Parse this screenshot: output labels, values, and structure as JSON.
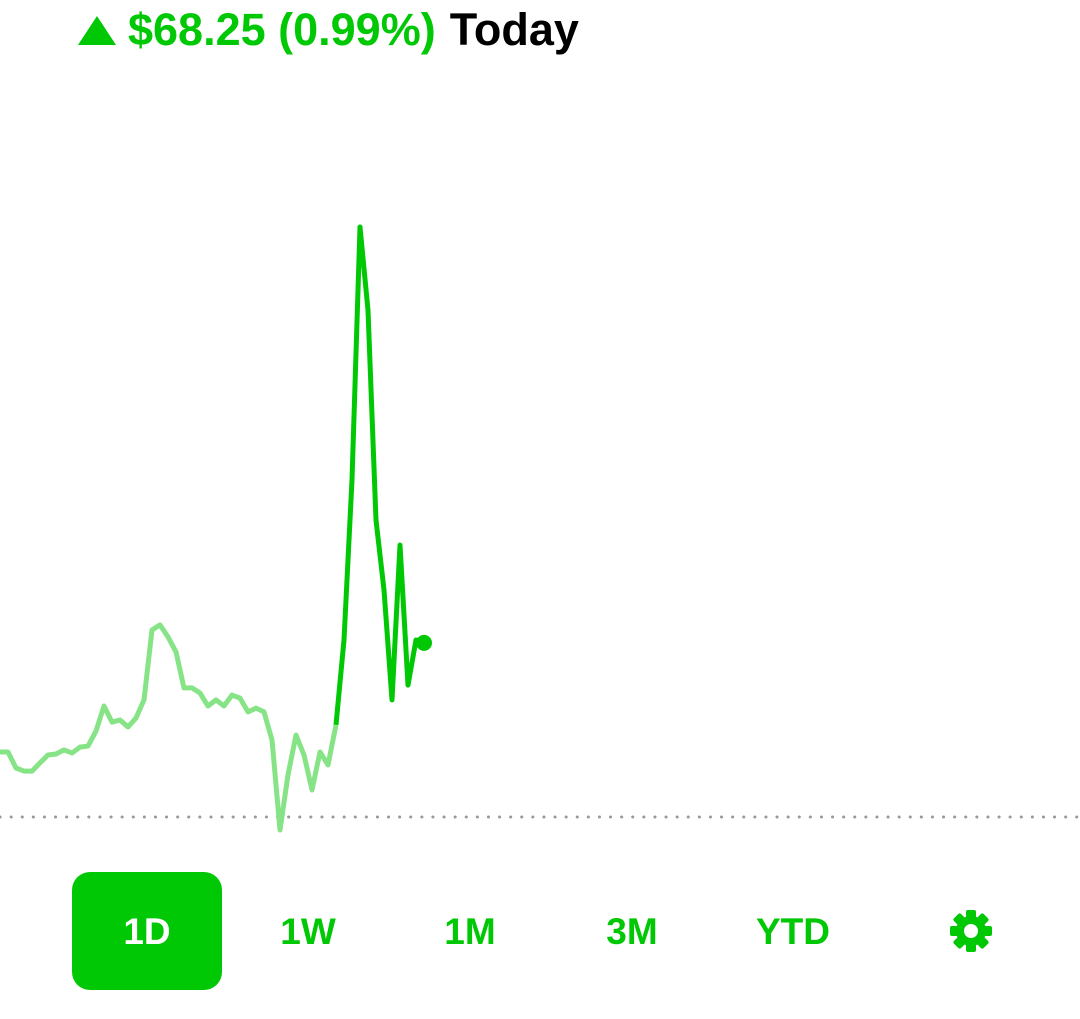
{
  "header": {
    "change_label": "$68.25 (0.99%)",
    "period_label": "Today"
  },
  "chart_data": {
    "type": "line",
    "series": [
      {
        "color": "#86e486",
        "values": [
          25.5,
          25.5,
          19.2,
          18.0,
          18.0,
          21.2,
          24.3,
          24.7,
          26.3,
          25.1,
          27.4,
          27.8,
          33.7,
          43.5,
          37.2,
          38.0,
          35.3,
          38.8,
          45.9,
          73.3,
          75.3,
          70.6,
          64.7,
          50.6,
          50.6,
          48.6,
          43.5,
          45.9,
          43.5,
          47.8,
          46.6,
          41.2,
          42.7,
          41.2,
          30.2,
          -5.1,
          16.5,
          32.1,
          24.3,
          10.6,
          25.5,
          20.4,
          36.1,
          null,
          null,
          null,
          null,
          null,
          null,
          null,
          null,
          null,
          null,
          null
        ]
      },
      {
        "color": "#00c805",
        "values": [
          null,
          null,
          null,
          null,
          null,
          null,
          null,
          null,
          null,
          null,
          null,
          null,
          null,
          null,
          null,
          null,
          null,
          null,
          null,
          null,
          null,
          null,
          null,
          null,
          null,
          null,
          null,
          null,
          null,
          null,
          null,
          null,
          null,
          null,
          null,
          null,
          null,
          null,
          null,
          null,
          null,
          null,
          36.1,
          69.4,
          132.1,
          231.3,
          198.7,
          116.4,
          89.0,
          45.9,
          106.6,
          51.7,
          69.4,
          68.25
        ]
      }
    ]
  },
  "range_buttons": {
    "labels": [
      "1D",
      "1W",
      "1M",
      "3M",
      "YTD"
    ],
    "selected": "1D"
  }
}
